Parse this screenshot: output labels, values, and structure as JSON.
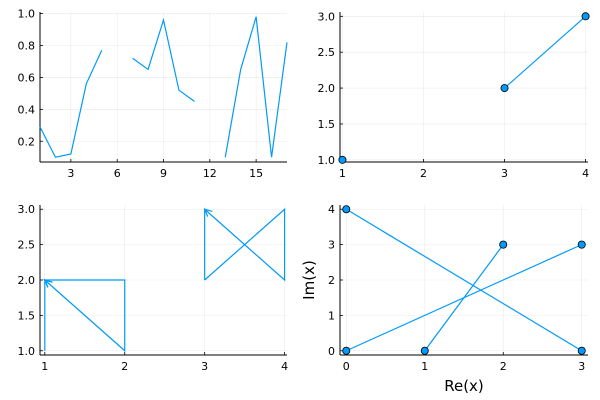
{
  "chart_data": [
    {
      "type": "line",
      "xticks": [
        "3",
        "6",
        "9",
        "12",
        "15"
      ],
      "yticks": [
        "0.2",
        "0.4",
        "0.6",
        "0.8",
        "1.0"
      ],
      "xlim": [
        1,
        17
      ],
      "ylim": [
        0.07,
        1.01
      ],
      "grid": true,
      "series": [
        {
          "x": [
            1,
            2,
            3,
            4,
            5,
            6,
            7,
            8,
            9,
            10,
            11,
            12,
            13,
            14,
            15,
            16,
            17
          ],
          "y": [
            0.29,
            0.1,
            0.12,
            0.56,
            0.77,
            null,
            0.72,
            0.65,
            0.96,
            0.52,
            0.45,
            null,
            0.1,
            0.65,
            0.98,
            0.1,
            0.82
          ]
        }
      ]
    },
    {
      "type": "scatter",
      "xticks": [
        "1",
        "2",
        "3",
        "4"
      ],
      "yticks": [
        "1.0",
        "1.5",
        "2.0",
        "2.5",
        "3.0"
      ],
      "xlim": [
        1,
        4
      ],
      "ylim": [
        1,
        3
      ],
      "grid": true,
      "series": [
        {
          "x": [
            1,
            null,
            3,
            4
          ],
          "y": [
            1,
            null,
            2,
            3
          ],
          "markers": true
        }
      ]
    },
    {
      "type": "line",
      "xticks": [
        "1",
        "2",
        "3",
        "4"
      ],
      "yticks": [
        "1.0",
        "1.5",
        "2.0",
        "2.5",
        "3.0"
      ],
      "xlim": [
        1,
        4
      ],
      "ylim": [
        1,
        3
      ],
      "grid": true,
      "series": [
        {
          "x": [
            2,
            1,
            2,
            2,
            1,
            1
          ],
          "y": [
            1,
            2,
            2,
            1,
            2,
            1
          ],
          "arrow_at": [
            [
              1,
              2
            ]
          ]
        },
        {
          "x": [
            3,
            4,
            4,
            3,
            3
          ],
          "y": [
            2,
            3,
            2,
            3,
            2
          ],
          "arrow_at": [
            [
              3,
              3
            ]
          ]
        }
      ]
    },
    {
      "type": "scatter",
      "xlabel": "Re(x)",
      "ylabel": "Im(x)",
      "xticks": [
        "0",
        "1",
        "2",
        "3"
      ],
      "yticks": [
        "0",
        "1",
        "2",
        "3",
        "4"
      ],
      "xlim": [
        0,
        3
      ],
      "ylim": [
        0,
        4
      ],
      "grid": true,
      "series": [
        {
          "x": [
            0,
            3
          ],
          "y": [
            0,
            3
          ],
          "markers": true
        },
        {
          "x": [
            1,
            2
          ],
          "y": [
            0,
            3
          ],
          "markers": true
        },
        {
          "x": [
            0,
            3
          ],
          "y": [
            4,
            0
          ],
          "markers": true
        }
      ]
    }
  ]
}
